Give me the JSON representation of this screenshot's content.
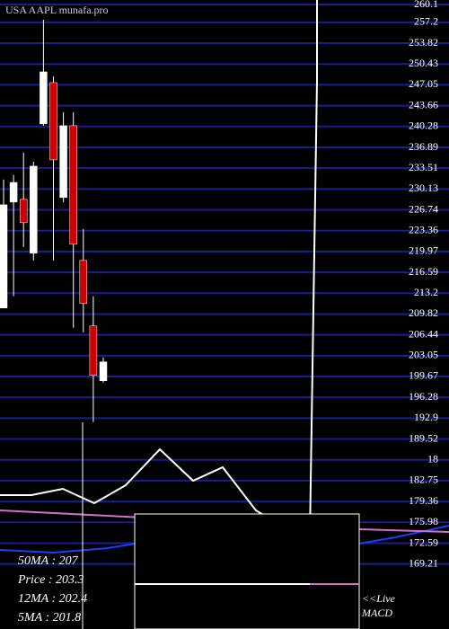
{
  "chart_data": {
    "type": "candlestick",
    "title": "USA AAPL munafa.pro",
    "categories": [
      null,
      null,
      null,
      null,
      null,
      null,
      null,
      null,
      null,
      null,
      null
    ],
    "open": [
      210.79,
      228.0,
      228.44,
      219.69,
      240.7,
      247.41,
      228.74,
      240.41,
      218.52,
      207.88,
      198.98
    ],
    "high": [
      231.65,
      232.4,
      236.03,
      234.57,
      257.62,
      248.43,
      242.6,
      242.6,
      223.63,
      212.69,
      202.77
    ],
    "low": [
      210.79,
      212.7,
      220.71,
      218.52,
      240.41,
      218.52,
      228.0,
      207.58,
      206.85,
      192.27,
      198.68
    ],
    "close": [
      227.57,
      231.2,
      224.65,
      233.84,
      249.16,
      234.86,
      240.41,
      221.15,
      211.52,
      199.85,
      202.04
    ],
    "up_color": "#ffffff",
    "down_color": "#cc0000",
    "grid_color": "#1c1c8a",
    "ylim": [
      168.87,
      260.83
    ],
    "yticks": [
      260.1,
      257.2,
      253.82,
      250.43,
      247.05,
      243.66,
      240.28,
      236.89,
      233.51,
      230.13,
      226.74,
      223.36,
      219.97,
      216.59,
      213.2,
      209.82,
      206.44,
      203.05,
      199.67,
      196.28,
      192.9,
      189.52,
      {
        "value": 186.13,
        "label": "18"
      },
      182.75,
      179.36,
      175.98,
      172.59,
      169.21
    ],
    "grid": true,
    "indicators": [
      "50MA : 207",
      "Price  : 203.3",
      "12MA : 202.4",
      "5MA : 201.8"
    ],
    "panel_labels": [
      "<<Live",
      "MACD"
    ]
  }
}
